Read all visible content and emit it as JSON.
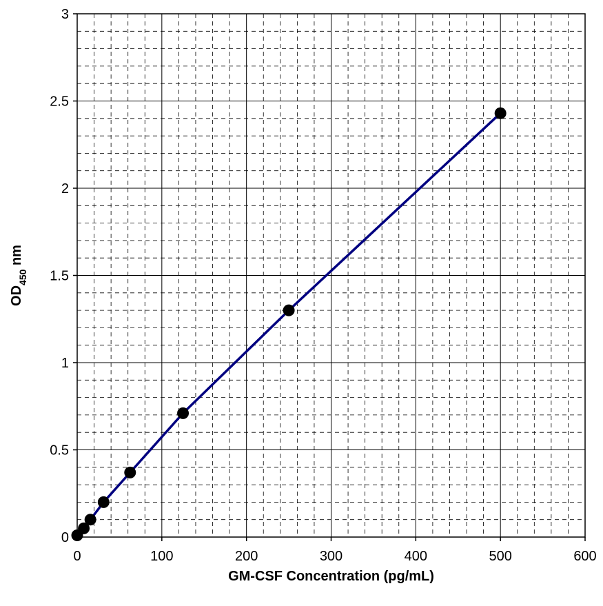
{
  "chart_data": {
    "type": "line",
    "xlabel": "GM-CSF Concentration (pg/mL)",
    "ylabel_main": "OD",
    "ylabel_sub": "450",
    "ylabel_suffix": " nm",
    "xlim": [
      0,
      600
    ],
    "ylim": [
      0,
      3
    ],
    "x_ticks": [
      0,
      100,
      200,
      300,
      400,
      500,
      600
    ],
    "y_ticks": [
      0,
      0.5,
      1,
      1.5,
      2,
      2.5,
      3
    ],
    "x_tick_labels": [
      "0",
      "100",
      "200",
      "300",
      "400",
      "500",
      "600"
    ],
    "y_tick_labels": [
      "0",
      "0.5",
      "1",
      "1.5",
      "2",
      "2.5",
      "3"
    ],
    "grid": true,
    "minor_grid": "dashed",
    "series": [
      {
        "color": "#000080",
        "marker_color": "#000000",
        "x": [
          0,
          7.8,
          15.6,
          31.2,
          62.5,
          125,
          250,
          500
        ],
        "y": [
          0.01,
          0.05,
          0.1,
          0.2,
          0.37,
          0.71,
          1.3,
          2.43
        ]
      }
    ]
  }
}
